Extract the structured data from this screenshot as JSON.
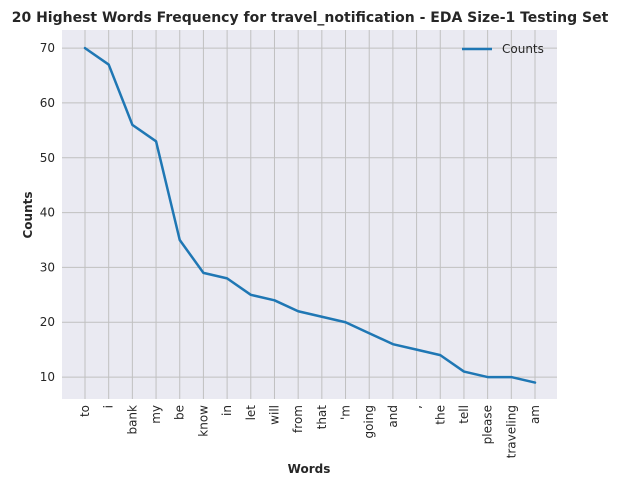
{
  "chart_data": {
    "type": "line",
    "title": "20 Highest Words Frequency for travel_notification - EDA Size-1 Testing Set",
    "xlabel": "Words",
    "ylabel": "Counts",
    "categories": [
      "to",
      "i",
      "bank",
      "my",
      "be",
      "know",
      "in",
      "let",
      "will",
      "from",
      "that",
      "'m",
      "going",
      "and",
      ",",
      "the",
      "tell",
      "please",
      "traveling",
      "am"
    ],
    "series": [
      {
        "name": "Counts",
        "values": [
          70,
          67,
          56,
          53,
          35,
          29,
          28,
          25,
          24,
          22,
          21,
          20,
          18,
          16,
          15,
          14,
          11,
          10,
          10,
          9
        ],
        "color": "#1f77b4"
      }
    ],
    "yticks": [
      10,
      20,
      30,
      40,
      50,
      60,
      70
    ],
    "ylim": [
      6,
      73.3
    ],
    "grid": true,
    "legend_position": "top-right",
    "plot_background": "#eaeaf2",
    "grid_color": "#c0c0c0"
  }
}
